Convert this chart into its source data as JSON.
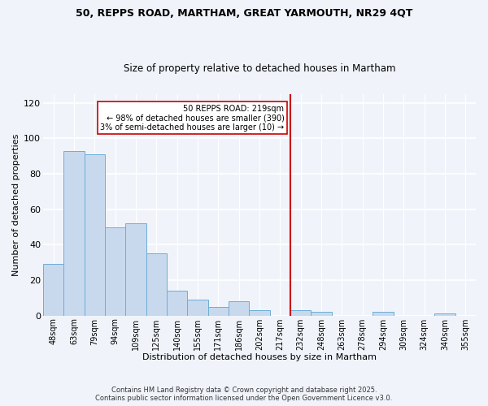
{
  "title1": "50, REPPS ROAD, MARTHAM, GREAT YARMOUTH, NR29 4QT",
  "title2": "Size of property relative to detached houses in Martham",
  "xlabel": "Distribution of detached houses by size in Martham",
  "ylabel": "Number of detached properties",
  "bar_labels": [
    "48sqm",
    "63sqm",
    "79sqm",
    "94sqm",
    "109sqm",
    "125sqm",
    "140sqm",
    "155sqm",
    "171sqm",
    "186sqm",
    "202sqm",
    "217sqm",
    "232sqm",
    "248sqm",
    "263sqm",
    "278sqm",
    "294sqm",
    "309sqm",
    "324sqm",
    "340sqm",
    "355sqm"
  ],
  "bar_heights": [
    29,
    93,
    91,
    50,
    52,
    35,
    14,
    9,
    5,
    8,
    3,
    0,
    3,
    2,
    0,
    0,
    2,
    0,
    0,
    1,
    0
  ],
  "bar_color": "#c8d9ee",
  "bar_edge_color": "#6baed6",
  "vline_color": "#cc0000",
  "vline_x_index": 11.5,
  "annotation_text1": "50 REPPS ROAD: 219sqm",
  "annotation_text2": "← 98% of detached houses are smaller (390)",
  "annotation_text3": "3% of semi-detached houses are larger (10) →",
  "ylim": [
    0,
    125
  ],
  "yticks": [
    0,
    20,
    40,
    60,
    80,
    100,
    120
  ],
  "footer1": "Contains HM Land Registry data © Crown copyright and database right 2025.",
  "footer2": "Contains public sector information licensed under the Open Government Licence v3.0.",
  "bg_color": "#f0f4fa"
}
